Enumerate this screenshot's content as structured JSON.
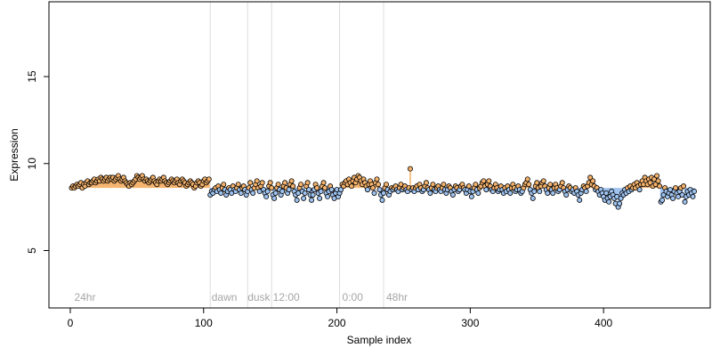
{
  "chart_data": {
    "type": "scatter",
    "title": "",
    "xlabel": "Sample index",
    "ylabel": "Expression",
    "xlim": [
      -16,
      480
    ],
    "ylim": [
      1.7,
      19.3
    ],
    "xticks": [
      0,
      100,
      200,
      300,
      400
    ],
    "yticks": [
      5,
      10,
      15
    ],
    "grid": false,
    "legend": "none",
    "vlines": [
      105,
      133,
      151,
      202,
      235
    ],
    "phase_labels": [
      {
        "x": 3,
        "text": "24hr"
      },
      {
        "x": 106,
        "text": "dawn"
      },
      {
        "x": 133,
        "text": "dusk"
      },
      {
        "x": 152,
        "text": "12:00"
      },
      {
        "x": 204,
        "text": "0:00"
      },
      {
        "x": 237,
        "text": "48hr"
      }
    ],
    "baseline": 8.6,
    "colors": {
      "up": "#f5b26b",
      "down": "#9ec2ef",
      "point_edge": "#000000",
      "vline": "#dddddd"
    },
    "segments": [
      {
        "from": 1,
        "to": 49,
        "values": [
          8.6,
          8.7,
          8.6,
          8.7,
          8.8,
          8.7,
          8.8,
          8.9,
          8.6,
          8.8,
          8.7,
          8.9,
          9.0,
          8.8,
          8.9,
          8.9,
          9.0,
          9.1,
          8.9,
          9.0,
          9.1,
          9.0,
          9.2,
          9.1,
          9.0,
          9.1,
          9.2,
          9.0,
          9.1,
          9.2,
          9.1,
          9.2,
          9.0,
          9.1,
          9.2,
          9.3,
          9.1,
          9.0,
          9.1,
          9.2,
          9.0,
          8.9,
          8.8,
          8.7,
          8.9,
          8.8,
          8.9,
          9.0,
          9.1
        ]
      },
      {
        "from": 50,
        "to": 104,
        "values": [
          9.3,
          9.2,
          9.1,
          9.2,
          9.3,
          9.1,
          9.0,
          9.1,
          9.0,
          8.9,
          9.0,
          9.1,
          9.2,
          9.0,
          8.9,
          8.8,
          9.0,
          9.1,
          9.0,
          9.1,
          9.2,
          9.0,
          8.9,
          8.8,
          8.9,
          9.0,
          9.1,
          9.0,
          8.9,
          9.0,
          9.1,
          8.9,
          8.8,
          9.0,
          9.1,
          9.0,
          8.9,
          8.7,
          8.8,
          8.9,
          9.0,
          8.9,
          8.8,
          8.6,
          8.7,
          8.9,
          9.0,
          8.9,
          8.7,
          8.8,
          9.0,
          9.1,
          8.9,
          9.0,
          9.1
        ]
      },
      {
        "from": 105,
        "to": 200,
        "values": [
          8.2,
          8.4,
          8.3,
          8.5,
          8.6,
          8.4,
          8.7,
          8.5,
          8.3,
          8.6,
          8.8,
          8.5,
          8.2,
          8.4,
          8.6,
          8.5,
          8.3,
          8.7,
          8.5,
          8.4,
          8.6,
          8.8,
          8.5,
          8.3,
          8.6,
          8.7,
          8.5,
          8.2,
          8.4,
          8.6,
          8.9,
          8.5,
          8.3,
          8.6,
          8.8,
          9.0,
          8.6,
          8.4,
          8.7,
          8.9,
          8.5,
          8.3,
          8.1,
          8.4,
          8.7,
          8.9,
          8.6,
          8.2,
          8.0,
          8.3,
          8.6,
          8.8,
          8.5,
          8.2,
          8.4,
          8.7,
          8.9,
          8.6,
          8.3,
          8.5,
          8.8,
          9.0,
          8.7,
          8.4,
          8.2,
          7.9,
          8.3,
          8.6,
          8.8,
          8.4,
          8.0,
          8.3,
          8.7,
          8.9,
          8.5,
          8.2,
          7.9,
          8.2,
          8.5,
          8.8,
          8.6,
          8.3,
          8.0,
          8.4,
          8.7,
          8.9,
          8.6,
          8.3,
          8.1,
          8.4,
          8.7,
          8.5,
          8.2,
          8.0,
          8.3,
          8.5
        ]
      },
      {
        "from": 201,
        "to": 240,
        "values": [
          8.1,
          8.3,
          8.5,
          8.8,
          8.7,
          8.9,
          9.0,
          8.8,
          9.1,
          8.9,
          8.7,
          9.0,
          9.2,
          8.9,
          9.1,
          9.3,
          9.2,
          9.0,
          8.8,
          9.1,
          8.9,
          8.7,
          8.5,
          8.8,
          9.0,
          8.8,
          8.6,
          8.3,
          8.9,
          9.1,
          8.8,
          8.5,
          8.2,
          7.9,
          8.3,
          8.6,
          8.8,
          8.5,
          8.2,
          8.4
        ]
      },
      {
        "from": 241,
        "to": 460,
        "values": [
          8.6,
          8.5,
          8.6,
          8.7,
          8.5,
          8.4,
          8.6,
          8.8,
          8.5,
          8.6,
          8.7,
          8.5,
          8.4,
          8.6,
          9.7,
          8.5,
          8.6,
          8.4,
          8.6,
          8.7,
          8.5,
          8.8,
          8.6,
          8.4,
          8.5,
          8.7,
          8.9,
          8.6,
          8.5,
          8.3,
          8.6,
          8.8,
          8.5,
          8.4,
          8.6,
          8.7,
          8.5,
          8.4,
          8.6,
          8.8,
          8.5,
          8.3,
          8.5,
          8.7,
          8.6,
          8.4,
          8.2,
          8.5,
          8.7,
          8.6,
          8.4,
          8.5,
          8.7,
          8.8,
          8.6,
          8.5,
          8.3,
          8.5,
          8.7,
          8.4,
          8.1,
          8.4,
          8.6,
          8.8,
          8.5,
          8.3,
          8.6,
          8.7,
          8.9,
          9.0,
          8.7,
          8.5,
          8.8,
          9.0,
          8.7,
          8.5,
          8.4,
          8.6,
          8.8,
          8.6,
          8.4,
          8.5,
          8.7,
          8.5,
          8.3,
          8.6,
          8.4,
          8.7,
          8.5,
          8.3,
          8.6,
          8.8,
          8.6,
          8.4,
          8.5,
          8.7,
          8.5,
          8.3,
          8.4,
          8.6,
          8.8,
          8.9,
          9.1,
          8.8,
          8.5,
          8.3,
          8.0,
          8.4,
          8.7,
          8.9,
          8.6,
          8.4,
          8.7,
          8.9,
          9.0,
          8.7,
          8.5,
          8.3,
          8.6,
          8.8,
          8.5,
          8.3,
          8.6,
          8.8,
          8.6,
          8.4,
          8.5,
          8.7,
          8.9,
          8.6,
          8.4,
          8.2,
          8.5,
          8.7,
          8.6,
          8.4,
          8.5,
          8.3,
          8.6,
          8.4,
          8.2,
          7.9,
          8.3,
          8.5,
          8.7,
          8.6,
          8.4,
          8.7,
          8.9,
          9.2,
          8.8,
          9.0,
          8.7,
          8.5,
          8.6,
          8.4,
          8.2,
          8.5,
          8.3,
          8.1,
          7.9,
          8.3,
          8.0,
          7.8,
          8.1,
          8.4,
          8.2,
          8.0,
          7.7,
          8.1,
          7.5,
          7.7,
          8.0,
          8.3,
          8.2,
          8.5,
          8.3,
          8.6,
          8.4,
          8.7,
          8.5,
          8.6,
          8.8,
          8.6,
          8.9,
          8.7,
          8.5,
          8.8,
          9.0,
          8.8,
          9.2,
          9.0,
          8.8,
          9.1,
          8.9,
          9.2,
          8.7,
          9.1,
          8.8,
          9.3,
          9.0,
          8.7,
          7.8,
          7.9,
          8.2,
          8.6,
          8.4,
          8.1,
          8.3,
          8.5,
          8.2,
          8.0,
          8.4,
          8.6,
          8.3,
          8.1,
          8.4,
          8.6,
          8.2,
          8.7,
          7.8,
          8.1,
          8.4,
          8.2,
          8.5,
          8.3,
          8.1,
          8.4
        ]
      }
    ]
  }
}
